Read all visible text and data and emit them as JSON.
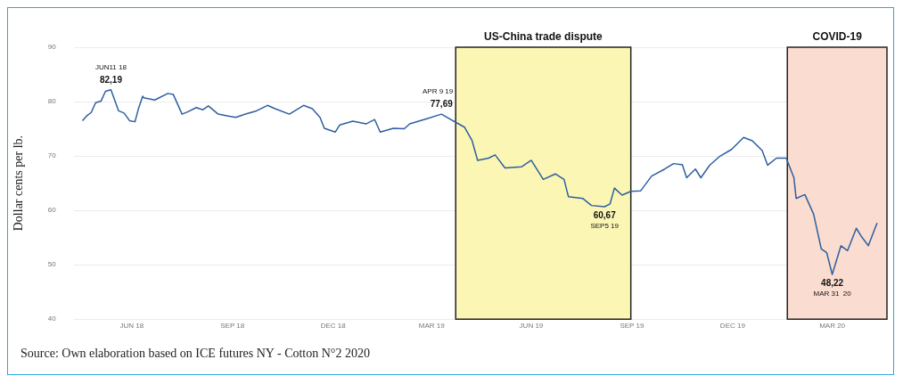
{
  "chart_data": {
    "type": "line",
    "ylabel": "Dollar cents per lb.",
    "x": [
      "2018-05-16",
      "2018-05-20",
      "2018-05-24",
      "2018-05-28",
      "2018-06-02",
      "2018-06-06",
      "2018-06-11",
      "2018-06-18",
      "2018-06-23",
      "2018-06-28",
      "2018-07-03",
      "2018-07-06",
      "2018-07-10",
      "2018-07-11",
      "2018-07-21",
      "2018-08-02",
      "2018-08-07",
      "2018-08-15",
      "2018-08-20",
      "2018-08-28",
      "2018-09-03",
      "2018-09-08",
      "2018-09-17",
      "2018-09-25",
      "2018-10-03",
      "2018-10-12",
      "2018-10-22",
      "2018-11-01",
      "2018-11-08",
      "2018-11-21",
      "2018-12-04",
      "2018-12-12",
      "2018-12-19",
      "2018-12-23",
      "2019-01-02",
      "2019-01-06",
      "2019-01-18",
      "2019-01-30",
      "2019-02-07",
      "2019-02-12",
      "2019-02-24",
      "2019-03-06",
      "2019-03-11",
      "2019-03-26",
      "2019-04-09",
      "2019-04-22",
      "2019-04-30",
      "2019-05-07",
      "2019-05-12",
      "2019-05-22",
      "2019-05-28",
      "2019-06-06",
      "2019-06-21",
      "2019-06-30",
      "2019-07-11",
      "2019-07-22",
      "2019-07-30",
      "2019-08-03",
      "2019-08-16",
      "2019-08-24",
      "2019-09-05",
      "2019-09-10",
      "2019-09-14",
      "2019-09-21",
      "2019-09-29",
      "2019-10-08",
      "2019-10-18",
      "2019-10-30",
      "2019-11-07",
      "2019-11-15",
      "2019-11-19",
      "2019-11-27",
      "2019-12-02",
      "2019-12-10",
      "2019-12-19",
      "2019-12-30",
      "2020-01-10",
      "2020-01-18",
      "2020-01-27",
      "2020-02-01",
      "2020-02-09",
      "2020-02-18",
      "2020-02-25",
      "2020-02-27",
      "2020-03-06",
      "2020-03-14",
      "2020-03-21",
      "2020-03-26",
      "2020-03-31",
      "2020-04-08",
      "2020-04-14",
      "2020-04-22",
      "2020-04-27",
      "2020-05-03",
      "2020-05-11"
    ],
    "series": [
      {
        "color": "#2e5fa0",
        "values": [
          76.5,
          77.4,
          78,
          79.8,
          80.1,
          81.9,
          82.19,
          78.3,
          77.9,
          76.5,
          76.3,
          78.6,
          81,
          80.7,
          80.3,
          81.5,
          81.3,
          77.7,
          78.1,
          78.9,
          78.5,
          79.2,
          77.7,
          77.4,
          77.1,
          77.7,
          78.3,
          79.3,
          78.7,
          77.7,
          79.3,
          78.7,
          77.1,
          75.1,
          74.4,
          75.7,
          76.4,
          75.9,
          76.7,
          74.4,
          75.1,
          75,
          75.9,
          76.8,
          77.69,
          76.2,
          75.3,
          72.8,
          69.2,
          69.6,
          70.2,
          67.8,
          68,
          69.2,
          65.7,
          66.7,
          65.7,
          62.5,
          62.2,
          60.9,
          60.67,
          61.2,
          64.1,
          62.8,
          63.5,
          63.6,
          66.3,
          67.6,
          68.6,
          68.4,
          66,
          67.6,
          66,
          68.3,
          69.9,
          71.2,
          73.4,
          72.8,
          71,
          68.3,
          69.6,
          69.6,
          66,
          62.2,
          62.9,
          59.3,
          52.9,
          52.2,
          48.22,
          53.5,
          52.6,
          56.7,
          55.1,
          53.5,
          57.7
        ]
      }
    ],
    "xlim": [
      "2018-05-08",
      "2020-05-20"
    ],
    "xticks": [
      {
        "value": "2018-06-30",
        "label": "JUN 18"
      },
      {
        "value": "2018-09-30",
        "label": "SEP 18"
      },
      {
        "value": "2018-12-31",
        "label": "DEC 18"
      },
      {
        "value": "2019-03-31",
        "label": "MAR 19"
      },
      {
        "value": "2019-06-30",
        "label": "JUN 19"
      },
      {
        "value": "2019-09-30",
        "label": "SEP 19"
      },
      {
        "value": "2019-12-31",
        "label": "DEC 19"
      },
      {
        "value": "2020-03-31",
        "label": "MAR 20"
      }
    ],
    "ylim": [
      40,
      90
    ],
    "yticks": [
      40,
      50,
      60,
      70,
      80,
      90
    ],
    "grid": "y",
    "legend": false,
    "marker": "none",
    "line_style": "solid",
    "bands": [
      {
        "axis": "x",
        "from": "2019-04-22",
        "to": "2019-09-29",
        "label": "US-China trade dispute",
        "color": "#fbf6b4"
      },
      {
        "axis": "x",
        "from": "2020-02-19",
        "to": "2020-05-20",
        "label": "COVID-19",
        "color": "#fadcd0"
      }
    ],
    "annotations": [
      {
        "text": "JUN11 18",
        "x": "2018-06-11",
        "y": 82.19
      },
      {
        "text": "82,19",
        "x": "2018-06-11",
        "y": 82.19
      },
      {
        "text": "APR 9 19",
        "x": "2019-04-09",
        "y": 77.69
      },
      {
        "text": "77,69",
        "x": "2019-04-09",
        "y": 77.69
      },
      {
        "text": "60,67",
        "x": "2019-09-05",
        "y": 60.67
      },
      {
        "text": "SEP5 19",
        "x": "2019-09-05",
        "y": 60.67
      },
      {
        "text": "48,22",
        "x": "2020-03-31",
        "y": 48.22
      },
      {
        "text": "MAR 31  20",
        "x": "2020-03-31",
        "y": 48.22
      },
      "Source: Own elaboration based on ICE futures NY - Cotton N°2 2020"
    ]
  }
}
